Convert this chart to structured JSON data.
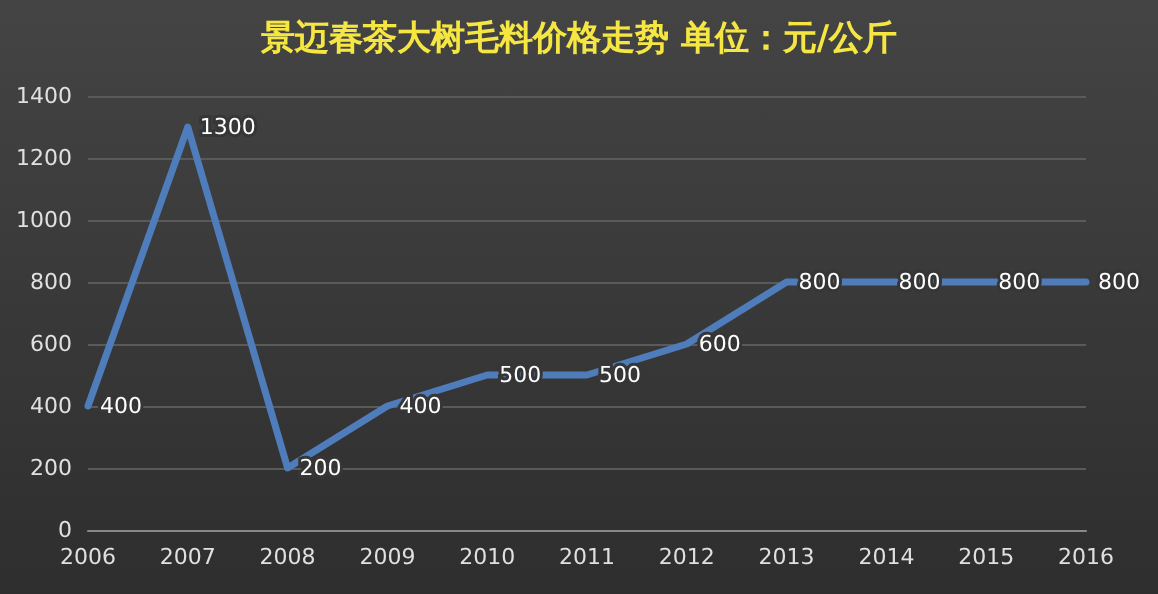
{
  "chart_data": {
    "type": "line",
    "title": "景迈春茶大树毛料价格走势 单位：元/公斤",
    "categories": [
      "2006",
      "2007",
      "2008",
      "2009",
      "2010",
      "2011",
      "2012",
      "2013",
      "2014",
      "2015",
      "2016"
    ],
    "values": [
      400,
      1300,
      200,
      400,
      500,
      500,
      600,
      800,
      800,
      800,
      800
    ],
    "color": "#4f7cba",
    "ylim": [
      0,
      1400
    ],
    "yticks": [
      0,
      200,
      400,
      600,
      800,
      1000,
      1200,
      1400
    ],
    "grid": "y",
    "data_labels": true,
    "marker": "none",
    "line_style": "solid"
  }
}
